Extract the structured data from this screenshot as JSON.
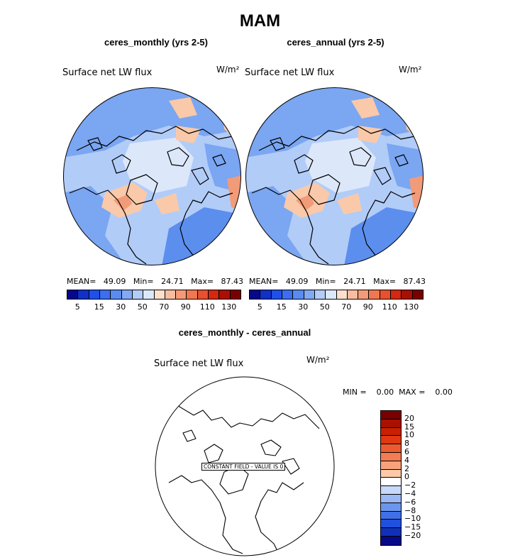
{
  "title": "MAM",
  "panels": [
    {
      "subtitle": "ceres_monthly (yrs 2-5)",
      "label": "Surface net LW flux",
      "units": "W/m²",
      "stats": "MEAN=   49.09   Min=   24.71   Max=   87.43",
      "colorbar_ticks": [
        "5",
        "15",
        "30",
        "50",
        "70",
        "90",
        "110",
        "130"
      ]
    },
    {
      "subtitle": "ceres_annual (yrs 2-5)",
      "label": "Surface net LW flux",
      "units": "W/m²",
      "stats": "MEAN=   49.09   Min=   24.71   Max=   87.43",
      "colorbar_ticks": [
        "5",
        "15",
        "30",
        "50",
        "70",
        "90",
        "110",
        "130"
      ]
    }
  ],
  "diff_panel": {
    "subtitle": "ceres_monthly - ceres_annual",
    "label": "Surface net LW flux",
    "units": "W/m²",
    "minmax": "MIN =    0.00  MAX =    0.00",
    "constant_note": "CONSTANT FIELD - VALUE IS 0",
    "colorbar_ticks": [
      "20",
      "15",
      "10",
      "8",
      "6",
      "4",
      "2",
      "0",
      "−2",
      "−4",
      "−6",
      "−8",
      "−10",
      "−15",
      "−20"
    ]
  },
  "colors": {
    "field_palette": [
      "#08088a",
      "#1030c8",
      "#2050e8",
      "#3c6ef0",
      "#5a8cf0",
      "#82aaf4",
      "#b4ccf8",
      "#dce8fa",
      "#fde0cc",
      "#f8bca0",
      "#f49a78",
      "#f07850",
      "#e85030",
      "#d42810",
      "#a81000",
      "#7a0000"
    ],
    "diff_palette": [
      "#7a0000",
      "#a81000",
      "#c82000",
      "#e03810",
      "#ee5a30",
      "#f47c52",
      "#f8a27c",
      "#fccaa8",
      "#ffffff",
      "#c8d8f8",
      "#9ab8f4",
      "#6c96ee",
      "#4070e8",
      "#2050dc",
      "#1030b8",
      "#08088a"
    ],
    "ocean_base": "#b2ccf8",
    "map_blue": "#7aa6f2",
    "map_blue_dark": "#5c8eee",
    "map_light": "#dce8fa",
    "map_warm": "#f9c9a9",
    "map_warm_dark": "#f29b78"
  }
}
